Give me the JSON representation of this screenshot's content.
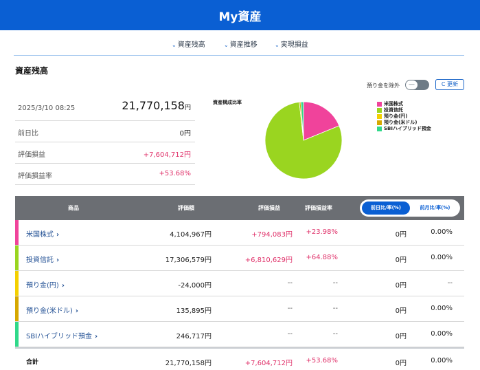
{
  "header": {
    "title": "My資産"
  },
  "subnav": {
    "items": [
      {
        "label": "資産残高"
      },
      {
        "label": "資産推移"
      },
      {
        "label": "実現損益"
      }
    ]
  },
  "summary": {
    "section_title": "資産残高",
    "datetime": "2025/3/10 08:25",
    "total_value": "21,770,158",
    "total_unit": "円",
    "rows": [
      {
        "label": "前日比",
        "value": "0円"
      },
      {
        "label": "評価損益",
        "value": "+7,604,712円"
      },
      {
        "label": "評価損益率",
        "value": "+53.68%"
      }
    ]
  },
  "controls": {
    "exclude_deposit_label": "預り金を除外",
    "toggle_symbol": "—",
    "refresh_label": "C 更新"
  },
  "chart": {
    "title": "資産構成比率"
  },
  "chart_data": {
    "type": "pie",
    "title": "資産構成比率",
    "labels": [
      "米国株式",
      "投資信託",
      "預り金(円)",
      "預り金(米ドル)",
      "SBIハイブリッド預金"
    ],
    "values": [
      4104967,
      17306579,
      -24000,
      135895,
      246717
    ],
    "colors": [
      "#f0439b",
      "#9ad520",
      "#f4d000",
      "#d6a800",
      "#30d98a"
    ],
    "legend_position": "right"
  },
  "table": {
    "headers": {
      "product": "商品",
      "value": "評価額",
      "pnl": "評価損益",
      "pnl_rate": "評価損益率",
      "toggle_day": "前日比/率(%)",
      "toggle_month": "前月比/率(%)"
    },
    "rows": [
      {
        "name": "米国株式",
        "color": "#f0439b",
        "value": "4,104,967円",
        "pnl": "+794,083円",
        "pnl_rate": "+23.98%",
        "day": "0円",
        "day_rate": "0.00%"
      },
      {
        "name": "投資信託",
        "color": "#9ad520",
        "value": "17,306,579円",
        "pnl": "+6,810,629円",
        "pnl_rate": "+64.88%",
        "day": "0円",
        "day_rate": "0.00%"
      },
      {
        "name": "預り金(円)",
        "color": "#f4d000",
        "value": "-24,000円",
        "pnl": "--",
        "pnl_rate": "--",
        "day": "0円",
        "day_rate": "--"
      },
      {
        "name": "預り金(米ドル)",
        "color": "#d6a800",
        "value": "135,895円",
        "pnl": "--",
        "pnl_rate": "--",
        "day": "0円",
        "day_rate": "0.00%"
      },
      {
        "name": "SBIハイブリッド預金",
        "color": "#30d98a",
        "value": "246,717円",
        "pnl": "--",
        "pnl_rate": "--",
        "day": "0円",
        "day_rate": "0.00%"
      }
    ],
    "total": {
      "name": "合計",
      "value": "21,770,158円",
      "pnl": "+7,604,712円",
      "pnl_rate": "+53.68%",
      "day": "0円",
      "day_rate": "0.00%"
    }
  }
}
